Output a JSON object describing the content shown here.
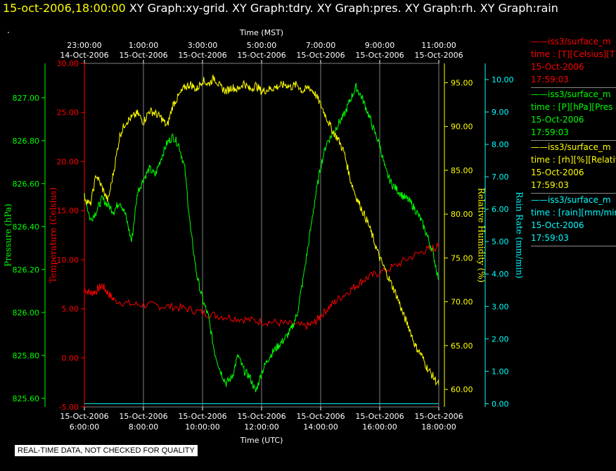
{
  "header": {
    "timestamp": "15-oct-2006,18:00:00",
    "graphs": "XY Graph:xy-grid.  XY Graph:tdry.  XY Graph:pres.  XY Graph:rh.  XY Graph:rain"
  },
  "notice": "REAL-TIME DATA, NOT CHECKED FOR QUALITY",
  "colors": {
    "pressure": "#00ff00",
    "temperature": "#ff0000",
    "humidity": "#ffff00",
    "rain": "#00ffff",
    "grid": "#808080",
    "text": "#ffffff"
  },
  "legend": [
    {
      "name": "——iss3/surface_m",
      "units": "time : [T][Celsius][T",
      "date": "15-Oct-2006",
      "time": "17:59:03",
      "color": "#ff0000"
    },
    {
      "name": "——iss3/surface_m",
      "units": "time : [P][hPa][Pres",
      "date": "15-Oct-2006",
      "time": "17:59:03",
      "color": "#00ff00"
    },
    {
      "name": "——iss3/surface_m",
      "units": "time : [rh][%][Relativ",
      "date": "15-Oct-2006",
      "time": "17:59:03",
      "color": "#ffff00"
    },
    {
      "name": "——iss3/surface_m",
      "units": "time : [rain][mm/min",
      "date": "15-Oct-2006",
      "time": "17:59:03",
      "color": "#00ffff"
    }
  ],
  "chart_data": {
    "type": "line",
    "x_top_label": "Time (MST)",
    "x_bottom_label": "Time (UTC)",
    "x_top_ticks": [
      {
        "time": "23:00:00",
        "date": "14-Oct-2006"
      },
      {
        "time": "1:00:00",
        "date": "15-Oct-2006"
      },
      {
        "time": "3:00:00",
        "date": "15-Oct-2006"
      },
      {
        "time": "5:00:00",
        "date": "15-Oct-2006"
      },
      {
        "time": "7:00:00",
        "date": "15-Oct-2006"
      },
      {
        "time": "9:00:00",
        "date": "15-Oct-2006"
      },
      {
        "time": "11:00:00",
        "date": "15-Oct-2006"
      }
    ],
    "x_bottom_ticks": [
      {
        "date": "15-Oct-2006",
        "time": "6:00:00"
      },
      {
        "date": "15-Oct-2006",
        "time": "8:00:00"
      },
      {
        "date": "15-Oct-2006",
        "time": "10:00:00"
      },
      {
        "date": "15-Oct-2006",
        "time": "12:00:00"
      },
      {
        "date": "15-Oct-2006",
        "time": "14:00:00"
      },
      {
        "date": "15-Oct-2006",
        "time": "16:00:00"
      },
      {
        "date": "15-Oct-2006",
        "time": "18:00:00"
      }
    ],
    "xlim_utc_hours": [
      6,
      18
    ],
    "axes": {
      "pressure": {
        "label": "Pressure (hPa)",
        "ylim": [
          825.56,
          827.16
        ],
        "ticks": [
          "825.60",
          "825.80",
          "826.00",
          "826.20",
          "826.40",
          "826.60",
          "826.80",
          "827.00"
        ]
      },
      "temperature": {
        "label": "Temperature (Celsius)",
        "ylim": [
          -5,
          30
        ],
        "ticks": [
          "-5.00",
          "0.00",
          "5.00",
          "10.00",
          "15.00",
          "20.00",
          "25.00",
          "30.00"
        ]
      },
      "humidity": {
        "label": "Relative Humidity (%)",
        "ylim": [
          58,
          97.2
        ],
        "ticks": [
          "60.00",
          "65.00",
          "70.00",
          "75.00",
          "80.00",
          "85.00",
          "90.00",
          "95.00"
        ]
      },
      "rain": {
        "label": "Rain Rate (mm/min)",
        "ylim": [
          -0.1,
          10.5
        ],
        "ticks": [
          "0.00",
          "1.00",
          "2.00",
          "3.00",
          "4.00",
          "5.00",
          "6.00",
          "7.00",
          "8.00",
          "9.00",
          "10.00"
        ]
      }
    },
    "series": [
      {
        "key": "temperature",
        "x": [
          6.0,
          6.2,
          6.4,
          6.6,
          6.8,
          7.0,
          7.5,
          8.0,
          8.5,
          9.0,
          9.5,
          10.0,
          10.5,
          11.0,
          11.5,
          12.0,
          12.5,
          13.0,
          13.5,
          13.8,
          14.0,
          14.3,
          14.6,
          15.0,
          15.3,
          15.6,
          16.0,
          16.5,
          17.0,
          17.5,
          17.8,
          18.0
        ],
        "y": [
          7.0,
          6.6,
          6.8,
          7.4,
          6.6,
          5.9,
          5.5,
          5.4,
          5.3,
          5.2,
          5.0,
          4.6,
          4.3,
          4.1,
          3.9,
          3.7,
          3.6,
          3.4,
          3.2,
          3.6,
          4.3,
          5.2,
          6.0,
          6.9,
          7.6,
          8.2,
          8.7,
          9.3,
          10.2,
          10.9,
          11.2,
          11.3
        ]
      },
      {
        "key": "pressure",
        "x": [
          6.0,
          6.2,
          6.4,
          6.6,
          6.8,
          7.0,
          7.2,
          7.4,
          7.6,
          7.8,
          8.0,
          8.2,
          8.4,
          8.6,
          8.8,
          9.0,
          9.2,
          9.4,
          9.6,
          9.8,
          10.0,
          10.2,
          10.4,
          10.6,
          10.8,
          11.0,
          11.2,
          11.4,
          11.6,
          11.8,
          12.0,
          12.2,
          12.4,
          12.6,
          12.8,
          13.0,
          13.2,
          13.4,
          13.6,
          13.8,
          14.0,
          14.2,
          14.4,
          14.6,
          14.8,
          15.0,
          15.2,
          15.4,
          15.6,
          15.8,
          16.0,
          16.2,
          16.4,
          16.6,
          16.8,
          17.0,
          17.2,
          17.4,
          17.6,
          17.8,
          18.0
        ],
        "y": [
          826.55,
          826.43,
          826.47,
          826.53,
          826.5,
          826.47,
          826.52,
          826.45,
          826.33,
          826.56,
          826.62,
          826.67,
          826.64,
          826.72,
          826.79,
          826.82,
          826.78,
          826.67,
          826.38,
          826.18,
          826.06,
          825.98,
          825.82,
          825.73,
          825.67,
          825.7,
          825.8,
          825.73,
          825.7,
          825.63,
          825.72,
          825.78,
          825.82,
          825.85,
          825.88,
          825.92,
          825.99,
          826.15,
          826.33,
          826.52,
          826.68,
          826.79,
          826.83,
          826.88,
          826.92,
          826.99,
          827.05,
          827.0,
          826.93,
          826.85,
          826.78,
          826.66,
          826.6,
          826.57,
          826.54,
          826.52,
          826.48,
          826.43,
          826.36,
          826.28,
          826.15
        ]
      },
      {
        "key": "humidity",
        "x": [
          6.0,
          6.2,
          6.4,
          6.6,
          6.8,
          7.0,
          7.2,
          7.4,
          7.6,
          7.8,
          8.0,
          8.2,
          8.4,
          8.6,
          8.8,
          9.0,
          9.2,
          9.4,
          9.6,
          9.8,
          10.0,
          10.2,
          10.4,
          10.6,
          10.8,
          11.0,
          11.2,
          11.4,
          11.6,
          11.8,
          12.0,
          12.2,
          12.4,
          12.6,
          12.8,
          13.0,
          13.2,
          13.4,
          13.6,
          13.8,
          14.0,
          14.2,
          14.4,
          14.6,
          14.8,
          15.0,
          15.2,
          15.4,
          15.6,
          15.8,
          16.0,
          16.2,
          16.4,
          16.6,
          16.8,
          17.0,
          17.2,
          17.4,
          17.6,
          17.8,
          18.0
        ],
        "y": [
          82.0,
          81.0,
          84.5,
          83.0,
          81.5,
          85.0,
          89.0,
          90.5,
          91.0,
          91.5,
          90.5,
          91.8,
          91.5,
          91.0,
          90.0,
          92.5,
          93.5,
          94.5,
          94.8,
          94.2,
          95.3,
          94.8,
          95.6,
          94.5,
          94.0,
          94.5,
          94.2,
          95.0,
          94.2,
          94.7,
          94.0,
          94.2,
          94.4,
          94.6,
          94.8,
          94.5,
          94.8,
          94.0,
          94.5,
          93.8,
          92.5,
          91.0,
          89.5,
          88.5,
          87.0,
          84.0,
          82.0,
          80.5,
          79.0,
          77.0,
          75.0,
          73.5,
          72.0,
          70.5,
          68.5,
          67.0,
          65.0,
          64.0,
          62.5,
          61.5,
          60.5
        ]
      },
      {
        "key": "rain",
        "x": [
          6.0,
          18.0
        ],
        "y": [
          0.0,
          0.0
        ]
      }
    ]
  }
}
